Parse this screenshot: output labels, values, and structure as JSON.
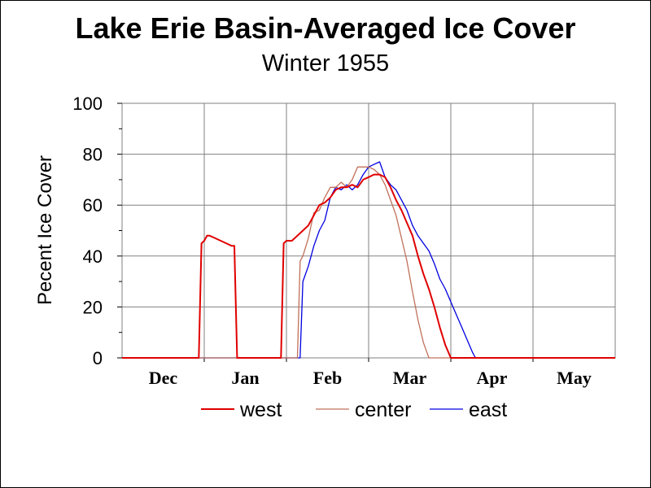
{
  "chart_data": {
    "type": "line",
    "title": "Lake Erie Basin-Averaged Ice Cover",
    "subtitle": "Winter 1955",
    "ylabel": "Pecent Ice Cover",
    "xlabel": "",
    "ylim": [
      0,
      100
    ],
    "yticks": [
      "0",
      "20",
      "40",
      "60",
      "80",
      "100"
    ],
    "month_labels": [
      "Dec",
      "Jan",
      "Feb",
      "Mar",
      "Apr",
      "May"
    ],
    "x_unit": "day of season (Dec 1 = 0)",
    "xlim": [
      -12,
      168
    ],
    "grid": true,
    "legend_position": "bottom",
    "series": [
      {
        "name": "west",
        "color": "#e00000",
        "x": [
          -12,
          16,
          17,
          18,
          19,
          20,
          22,
          24,
          26,
          28,
          29,
          30,
          31,
          32,
          46,
          47,
          48,
          50,
          52,
          54,
          56,
          58,
          60,
          62,
          64,
          66,
          68,
          70,
          72,
          74,
          76,
          78,
          80,
          82,
          84,
          86,
          88,
          90,
          92,
          94,
          96,
          98,
          100,
          102,
          104,
          106,
          108,
          109,
          110,
          168
        ],
        "y": [
          0,
          0,
          45,
          46,
          48,
          48,
          47,
          46,
          45,
          44,
          44,
          0,
          0,
          0,
          0,
          45,
          46,
          46,
          48,
          50,
          52,
          56,
          60,
          61,
          63,
          66,
          67,
          67,
          68,
          67,
          70,
          71,
          72,
          72,
          71,
          67,
          62,
          58,
          53,
          48,
          40,
          33,
          27,
          20,
          12,
          5,
          0,
          0,
          0,
          0
        ]
      },
      {
        "name": "center",
        "color": "#c0705a",
        "x": [
          -12,
          52,
          53,
          54,
          56,
          58,
          60,
          62,
          64,
          66,
          68,
          70,
          72,
          74,
          76,
          78,
          80,
          82,
          84,
          86,
          88,
          90,
          92,
          94,
          96,
          98,
          100,
          102,
          104,
          168
        ],
        "y": [
          0,
          0,
          38,
          40,
          47,
          57,
          58,
          63,
          67,
          67,
          69,
          67,
          70,
          75,
          75,
          75,
          74,
          72,
          68,
          62,
          56,
          47,
          38,
          26,
          15,
          6,
          0,
          0,
          0,
          0
        ]
      },
      {
        "name": "east",
        "color": "#0000e0",
        "x": [
          -12,
          53,
          54,
          56,
          58,
          60,
          62,
          64,
          66,
          68,
          70,
          72,
          74,
          76,
          78,
          80,
          82,
          84,
          86,
          88,
          90,
          92,
          94,
          96,
          98,
          100,
          102,
          104,
          106,
          108,
          110,
          112,
          114,
          116,
          117,
          118,
          168
        ],
        "y": [
          0,
          0,
          30,
          36,
          44,
          50,
          54,
          63,
          67,
          66,
          68,
          66,
          68,
          72,
          75,
          76,
          77,
          71,
          68,
          66,
          62,
          58,
          52,
          48,
          45,
          42,
          37,
          31,
          27,
          22,
          17,
          12,
          7,
          2,
          0,
          0,
          0
        ]
      }
    ]
  }
}
